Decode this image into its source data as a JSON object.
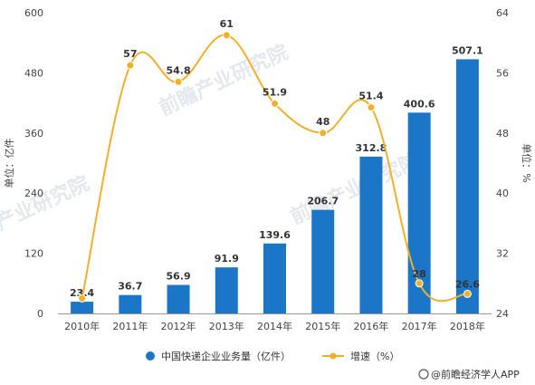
{
  "chart_data": {
    "type": "bar",
    "categories": [
      "2010年",
      "2011年",
      "2012年",
      "2013年",
      "2014年",
      "2015年",
      "2016年",
      "2017年",
      "2018年"
    ],
    "series": [
      {
        "name": "中国快递企业业务量（亿件）",
        "type": "bar",
        "axis": "left",
        "values": [
          23.4,
          36.7,
          56.9,
          91.9,
          139.6,
          206.7,
          312.8,
          400.6,
          507.1
        ],
        "color": "#1b76c8"
      },
      {
        "name": "增速（%）",
        "type": "line",
        "axis": "right",
        "values": [
          26,
          57,
          54.8,
          61,
          51.9,
          48,
          51.4,
          28,
          26.6
        ],
        "labels": [
          "",
          "57",
          "54.8",
          "61",
          "51.9",
          "48",
          "51.4",
          "28",
          "26.6"
        ],
        "color": "#f0b12a"
      }
    ],
    "ylabel_left": "单位：亿件",
    "ylabel_right": "单位：%",
    "ylim_left": [
      0,
      600
    ],
    "yticks_left": [
      0,
      120,
      240,
      360,
      480,
      600
    ],
    "ylim_right": [
      24,
      64
    ],
    "yticks_right": [
      24,
      32,
      40,
      48,
      56,
      64
    ],
    "bar_labels": [
      "23.4",
      "36.7",
      "56.9",
      "91.9",
      "139.6",
      "206.7",
      "312.8",
      "400.6",
      "507.1"
    ],
    "legend_placement": "bottom",
    "grid": false
  },
  "source_text": "@前瞻经济学人APP",
  "watermark_text": "前瞻产业研究院"
}
